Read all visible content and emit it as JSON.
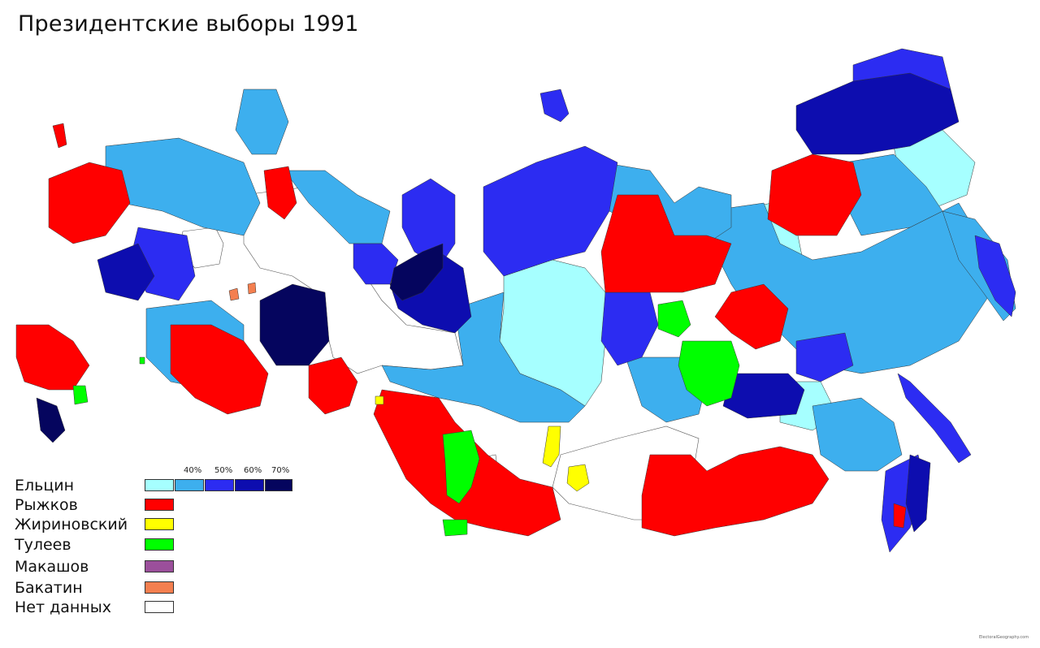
{
  "title": "Президентские выборы 1991",
  "colors": {
    "yeltsin_lt40": "#a6ffff",
    "yeltsin_40_50": "#3dafee",
    "yeltsin_50_60": "#2c2cf2",
    "yeltsin_60_70": "#0d0daf",
    "yeltsin_gt70": "#05055e",
    "ryzhkov": "#ff0000",
    "zhirinovsky": "#ffff00",
    "tuleev": "#00ff00",
    "makashov": "#9b4f9b",
    "bakatin": "#f47f4f",
    "no_data": "#ffffff"
  },
  "legend": {
    "thresholds": [
      "40%",
      "50%",
      "60%",
      "70%"
    ],
    "items": [
      {
        "label": "Ельцин",
        "color": "#3dafee"
      },
      {
        "label": "Рыжков",
        "color": "#ff0000"
      },
      {
        "label": "Жириновский",
        "color": "#ffff00"
      },
      {
        "label": "Тулеев",
        "color": "#00ff00"
      },
      {
        "label": "Макашов",
        "color": "#9b4f9b"
      },
      {
        "label": "Бакатин",
        "color": "#f47f4f"
      },
      {
        "label": "Нет данных",
        "color": "#ffffff"
      }
    ]
  },
  "watermark": "ElectoralGeography.com"
}
